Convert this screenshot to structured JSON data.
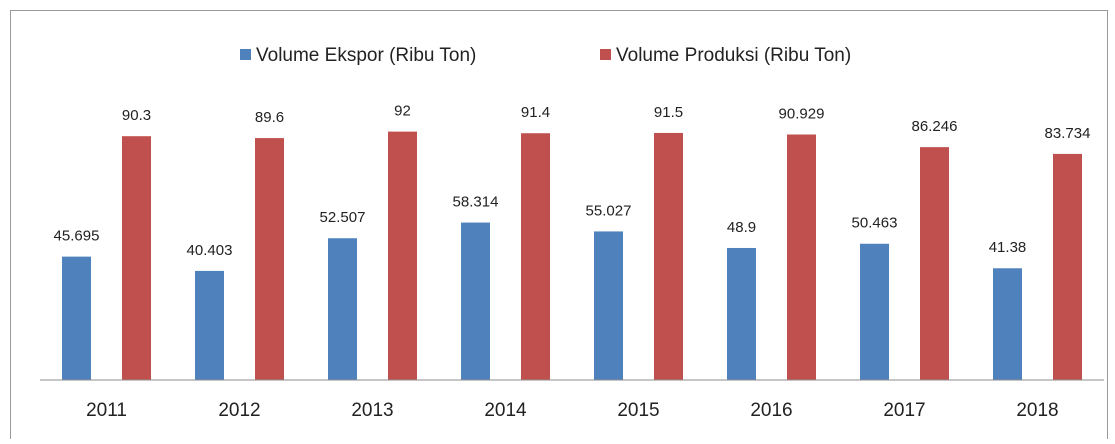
{
  "chart_data": {
    "type": "bar",
    "categories": [
      "2011",
      "2012",
      "2013",
      "2014",
      "2015",
      "2016",
      "2017",
      "2018"
    ],
    "series": [
      {
        "name": "Volume Ekspor (Ribu Ton)",
        "color": "#4f81bd",
        "values": [
          45.695,
          40.403,
          52.507,
          58.314,
          55.027,
          48.9,
          50.463,
          41.38
        ]
      },
      {
        "name": "Volume Produksi (Ribu Ton)",
        "color": "#c0504d",
        "values": [
          90.3,
          89.6,
          92,
          91.4,
          91.5,
          90.929,
          86.246,
          83.734
        ]
      }
    ],
    "ylim": [
      0,
      100
    ],
    "legend": "top"
  }
}
